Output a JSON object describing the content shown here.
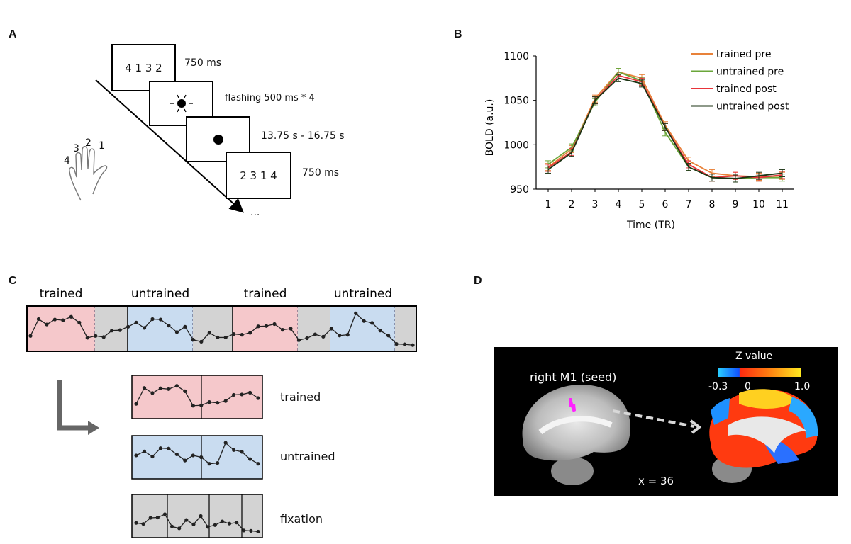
{
  "panels": {
    "a": "A",
    "b": "B",
    "c": "C",
    "d": "D"
  },
  "panel_a": {
    "screens": [
      {
        "content": "4 1 3 2",
        "duration": "750 ms"
      },
      {
        "content": "",
        "icon": "flashing-dot-icon",
        "duration": "flashing  500 ms * 4"
      },
      {
        "content": "",
        "icon": "fixation-dot-icon",
        "duration": "13.75 s - 16.75 s"
      },
      {
        "content": "2 3 1 4",
        "duration": "750 ms"
      }
    ],
    "ellipsis": "...",
    "fingers": [
      "4",
      "3",
      "2",
      "1"
    ]
  },
  "chart_data": [
    {
      "type": "line",
      "xlabel": "Time (TR)",
      "ylabel": "BOLD (a.u.)",
      "x": [
        1,
        2,
        3,
        4,
        5,
        6,
        7,
        8,
        9,
        10,
        11
      ],
      "ylim": [
        950,
        1100
      ],
      "yticks": [
        950,
        1000,
        1050,
        1100
      ],
      "legend": "top-right",
      "error_bars": true,
      "series": [
        {
          "name": "trained pre",
          "color": "#e8823a",
          "values": [
            975,
            995,
            1052,
            1082,
            1075,
            1022,
            982,
            968,
            965,
            964,
            965
          ],
          "error": 4
        },
        {
          "name": "untrained pre",
          "color": "#6aa63a",
          "values": [
            978,
            997,
            1048,
            1082,
            1072,
            1014,
            975,
            963,
            962,
            963,
            963
          ],
          "error": 4
        },
        {
          "name": "trained post",
          "color": "#e8343a",
          "values": [
            974,
            992,
            1050,
            1078,
            1071,
            1020,
            978,
            963,
            965,
            963,
            966
          ],
          "error": 4
        },
        {
          "name": "untrained post",
          "color": "#1c3414",
          "values": [
            972,
            991,
            1050,
            1075,
            1069,
            1020,
            975,
            963,
            962,
            965,
            968
          ],
          "error": 4
        }
      ]
    },
    {
      "type": "line",
      "values": [
        31,
        75,
        61,
        74,
        72,
        81,
        66,
        26,
        31,
        28,
        45,
        46,
        55,
        66,
        52,
        75,
        74,
        58,
        41,
        55,
        21,
        16,
        39,
        27,
        27,
        36,
        34,
        39,
        56,
        57,
        62,
        47,
        50,
        20,
        25,
        35,
        29,
        50,
        32,
        34,
        90,
        70,
        65,
        45,
        32,
        10,
        9,
        7
      ],
      "blocks": [
        {
          "label": "trained",
          "condition": "trained"
        },
        {
          "label": "untrained",
          "condition": "untrained"
        },
        {
          "label": "trained",
          "condition": "trained"
        },
        {
          "label": "untrained",
          "condition": "untrained"
        }
      ],
      "split_labels": [
        "trained",
        "untrained",
        "fixation"
      ],
      "colors": {
        "trained": "#f5c8cb",
        "untrained": "#c9dcf0",
        "fixation": "#d3d3d3"
      }
    }
  ],
  "panel_d": {
    "seed_label": "right M1 (seed)",
    "colorbar_title": "Z value",
    "colorbar_ticks": [
      "-0.3",
      "0",
      "1.0"
    ],
    "slice_label": "x = 36",
    "colors": {
      "seed": "#ff22ff",
      "negative": "#1e90ff",
      "positive": "#ff3a10",
      "max": "#ffe020"
    }
  }
}
